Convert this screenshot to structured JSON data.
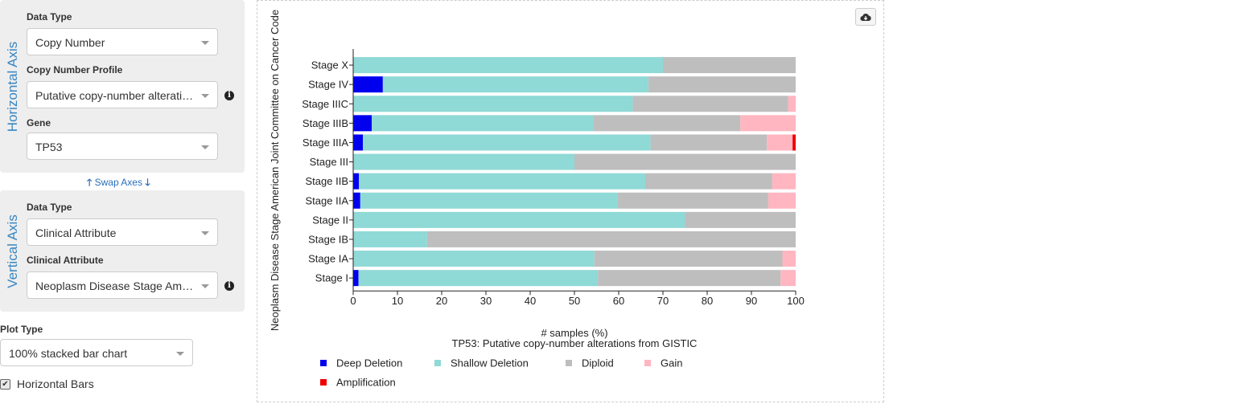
{
  "horizontal_axis": {
    "title": "Horizontal Axis",
    "data_type_label": "Data Type",
    "data_type_value": "Copy Number",
    "profile_label": "Copy Number Profile",
    "profile_value": "Putative copy-number alterations from GISTIC",
    "gene_label": "Gene",
    "gene_value": "TP53"
  },
  "swap_axes_label": "Swap Axes",
  "vertical_axis": {
    "title": "Vertical Axis",
    "data_type_label": "Data Type",
    "data_type_value": "Clinical Attribute",
    "clinical_label": "Clinical Attribute",
    "clinical_value": "Neoplasm Disease Stage American Joint Committee on Cancer Code"
  },
  "plot_type_label": "Plot Type",
  "plot_type_value": "100% stacked bar chart",
  "horizontal_bars_label": "Horizontal Bars",
  "horizontal_bars_checked": true,
  "icons": {
    "info": "info-circle-icon",
    "download": "cloud-download-icon",
    "select": "chevron-down-icon"
  },
  "chart_data": {
    "type": "bar",
    "orientation": "horizontal",
    "stacked": "percent",
    "categories": [
      "Stage X",
      "Stage IV",
      "Stage IIIC",
      "Stage IIIB",
      "Stage IIIA",
      "Stage III",
      "Stage IIB",
      "Stage IIA",
      "Stage II",
      "Stage IB",
      "Stage IA",
      "Stage I"
    ],
    "series": [
      {
        "name": "Deep Deletion",
        "color": "#0000ee",
        "values": [
          0,
          6.7,
          0,
          4.2,
          2.2,
          0,
          1.3,
          1.6,
          0,
          0,
          0,
          1.2
        ]
      },
      {
        "name": "Shallow Deletion",
        "color": "#8fd9d6",
        "values": [
          70,
          60,
          63.2,
          50,
          65,
          50,
          64.7,
          58.1,
          75,
          16.7,
          54.5,
          54.1
        ]
      },
      {
        "name": "Diploid",
        "color": "#bebebe",
        "values": [
          30,
          33.3,
          35.1,
          33.3,
          26.3,
          50,
          28.7,
          34.1,
          25,
          83.3,
          42.5,
          41.3
        ]
      },
      {
        "name": "Gain",
        "color": "#ffb6c1",
        "values": [
          0,
          0,
          1.7,
          12.5,
          5.8,
          0,
          5.3,
          6.2,
          0,
          0,
          3,
          3.4
        ]
      },
      {
        "name": "Amplification",
        "color": "#ee0000",
        "values": [
          0,
          0,
          0,
          0,
          0.7,
          0,
          0,
          0,
          0,
          0,
          0,
          0
        ]
      }
    ],
    "xlim": [
      0,
      100
    ],
    "xticks": [
      "0",
      "10",
      "20",
      "30",
      "40",
      "50",
      "60",
      "70",
      "80",
      "90",
      "100"
    ],
    "xlabel": "# samples (%)",
    "ylabel": "Neoplasm Disease Stage American Joint Committee on Cancer Code",
    "title": "TP53: Putative copy-number alterations from GISTIC",
    "legend_position": "bottom"
  }
}
